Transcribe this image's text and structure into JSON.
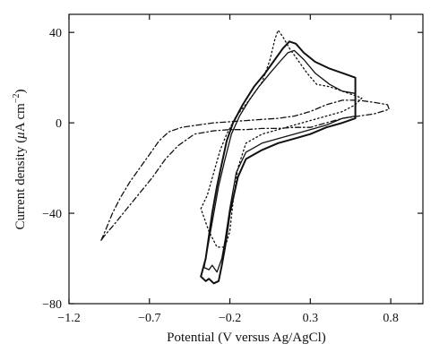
{
  "chart_data": {
    "type": "line",
    "title": "",
    "xlabel": "Potential (V versus Ag/AgCl)",
    "ylabel_parts": [
      "Current density (",
      "μ",
      "A cm",
      "−2",
      ")"
    ],
    "xlim": [
      -1.2,
      1.0
    ],
    "ylim": [
      -80,
      48
    ],
    "xticks": [
      -1.2,
      -0.7,
      -0.2,
      0.3,
      0.8
    ],
    "xtick_labels": [
      "−1.2",
      "−0.7",
      "−0.2",
      "0.3",
      "0.8"
    ],
    "yticks": [
      -80,
      -40,
      0,
      40
    ],
    "ytick_labels": [
      "−80",
      "−40",
      "0",
      "40"
    ],
    "grid": false,
    "legend": "none",
    "series": [
      {
        "style": "solid-outer",
        "points": [
          [
            -0.38,
            -68
          ],
          [
            -0.35,
            -60
          ],
          [
            -0.33,
            -50
          ],
          [
            -0.31,
            -40
          ],
          [
            -0.28,
            -28
          ],
          [
            -0.25,
            -18
          ],
          [
            -0.22,
            -8
          ],
          [
            -0.18,
            0
          ],
          [
            -0.12,
            8
          ],
          [
            -0.05,
            16
          ],
          [
            0.02,
            22
          ],
          [
            0.08,
            28
          ],
          [
            0.13,
            33
          ],
          [
            0.17,
            36
          ],
          [
            0.21,
            35
          ],
          [
            0.26,
            31
          ],
          [
            0.33,
            27
          ],
          [
            0.42,
            24
          ],
          [
            0.5,
            22
          ],
          [
            0.58,
            20
          ],
          [
            0.58,
            10
          ],
          [
            0.58,
            2
          ],
          [
            0.5,
            0
          ],
          [
            0.4,
            -2
          ],
          [
            0.3,
            -5
          ],
          [
            0.2,
            -7
          ],
          [
            0.1,
            -9
          ],
          [
            0.0,
            -12
          ],
          [
            -0.1,
            -16
          ],
          [
            -0.15,
            -24
          ],
          [
            -0.2,
            -40
          ],
          [
            -0.23,
            -55
          ],
          [
            -0.25,
            -63
          ],
          [
            -0.27,
            -70
          ],
          [
            -0.3,
            -71
          ],
          [
            -0.33,
            -69
          ],
          [
            -0.35,
            -70
          ],
          [
            -0.38,
            -68
          ]
        ]
      },
      {
        "style": "solid-inner",
        "points": [
          [
            -0.36,
            -64
          ],
          [
            -0.33,
            -52
          ],
          [
            -0.3,
            -40
          ],
          [
            -0.27,
            -28
          ],
          [
            -0.23,
            -16
          ],
          [
            -0.19,
            -5
          ],
          [
            -0.14,
            3
          ],
          [
            -0.08,
            10
          ],
          [
            -0.02,
            16
          ],
          [
            0.05,
            22
          ],
          [
            0.11,
            27
          ],
          [
            0.16,
            31
          ],
          [
            0.2,
            32
          ],
          [
            0.26,
            28
          ],
          [
            0.33,
            22
          ],
          [
            0.42,
            17
          ],
          [
            0.5,
            14
          ],
          [
            0.58,
            13
          ],
          [
            0.58,
            7
          ],
          [
            0.58,
            3
          ],
          [
            0.5,
            2
          ],
          [
            0.4,
            -1
          ],
          [
            0.3,
            -3
          ],
          [
            0.2,
            -5
          ],
          [
            0.1,
            -7
          ],
          [
            0.0,
            -9
          ],
          [
            -0.1,
            -13
          ],
          [
            -0.16,
            -22
          ],
          [
            -0.2,
            -38
          ],
          [
            -0.23,
            -52
          ],
          [
            -0.25,
            -60
          ],
          [
            -0.28,
            -66
          ],
          [
            -0.31,
            -63
          ],
          [
            -0.33,
            -65
          ],
          [
            -0.36,
            -64
          ]
        ]
      },
      {
        "style": "dotted",
        "points": [
          [
            -0.38,
            -38
          ],
          [
            -0.34,
            -32
          ],
          [
            -0.3,
            -22
          ],
          [
            -0.26,
            -12
          ],
          [
            -0.22,
            -5
          ],
          [
            -0.16,
            3
          ],
          [
            -0.08,
            10
          ],
          [
            0.0,
            18
          ],
          [
            0.05,
            28
          ],
          [
            0.08,
            37
          ],
          [
            0.1,
            41
          ],
          [
            0.13,
            38
          ],
          [
            0.17,
            33
          ],
          [
            0.22,
            28
          ],
          [
            0.28,
            22
          ],
          [
            0.34,
            17
          ],
          [
            0.42,
            16
          ],
          [
            0.5,
            14
          ],
          [
            0.58,
            12
          ],
          [
            0.62,
            11
          ],
          [
            0.58,
            8
          ],
          [
            0.5,
            5
          ],
          [
            0.4,
            3
          ],
          [
            0.3,
            1
          ],
          [
            0.2,
            -1
          ],
          [
            0.1,
            -3
          ],
          [
            0.0,
            -5
          ],
          [
            -0.1,
            -9
          ],
          [
            -0.15,
            -20
          ],
          [
            -0.18,
            -35
          ],
          [
            -0.2,
            -48
          ],
          [
            -0.23,
            -55
          ],
          [
            -0.28,
            -55
          ],
          [
            -0.33,
            -48
          ],
          [
            -0.38,
            -38
          ]
        ]
      },
      {
        "style": "dashdot",
        "points": [
          [
            -1.0,
            -52
          ],
          [
            -0.97,
            -47
          ],
          [
            -0.93,
            -40
          ],
          [
            -0.88,
            -33
          ],
          [
            -0.82,
            -26
          ],
          [
            -0.76,
            -20
          ],
          [
            -0.7,
            -14
          ],
          [
            -0.64,
            -8
          ],
          [
            -0.58,
            -4
          ],
          [
            -0.5,
            -2
          ],
          [
            -0.4,
            -1
          ],
          [
            -0.3,
            0
          ],
          [
            -0.2,
            0.5
          ],
          [
            -0.1,
            1
          ],
          [
            0.0,
            1.5
          ],
          [
            0.1,
            2
          ],
          [
            0.2,
            3
          ],
          [
            0.3,
            5
          ],
          [
            0.4,
            8
          ],
          [
            0.5,
            10
          ],
          [
            0.6,
            10
          ],
          [
            0.7,
            9
          ],
          [
            0.78,
            8
          ],
          [
            0.79,
            6
          ],
          [
            0.7,
            4
          ],
          [
            0.6,
            3
          ],
          [
            0.5,
            2
          ],
          [
            0.4,
            0
          ],
          [
            0.3,
            -2
          ],
          [
            0.2,
            -2
          ],
          [
            0.1,
            -2.5
          ],
          [
            0.0,
            -2.5
          ],
          [
            -0.1,
            -3
          ],
          [
            -0.2,
            -3
          ],
          [
            -0.3,
            -3.5
          ],
          [
            -0.42,
            -5
          ],
          [
            -0.52,
            -10
          ],
          [
            -0.6,
            -16
          ],
          [
            -0.68,
            -24
          ],
          [
            -0.76,
            -31
          ],
          [
            -0.84,
            -38
          ],
          [
            -0.92,
            -45
          ],
          [
            -0.98,
            -50
          ],
          [
            -1.0,
            -52
          ]
        ]
      }
    ]
  }
}
